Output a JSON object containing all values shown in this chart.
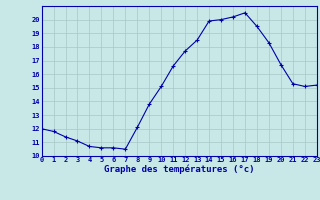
{
  "x": [
    0,
    1,
    2,
    3,
    4,
    5,
    6,
    7,
    8,
    9,
    10,
    11,
    12,
    13,
    14,
    15,
    16,
    17,
    18,
    19,
    20,
    21,
    22,
    23
  ],
  "y": [
    12.0,
    11.8,
    11.4,
    11.1,
    10.7,
    10.6,
    10.6,
    10.5,
    12.1,
    13.8,
    15.1,
    16.6,
    17.7,
    18.5,
    19.9,
    20.0,
    20.2,
    20.5,
    19.5,
    18.3,
    16.7,
    15.3,
    15.1,
    15.2
  ],
  "line_color": "#0000AA",
  "marker": "+",
  "marker_size": 3,
  "bg_color": "#C8E8E8",
  "grid_color": "#A8C8C8",
  "xlabel": "Graphe des températures (°c)",
  "tick_color": "#0000AA",
  "ylim": [
    10,
    21
  ],
  "yticks": [
    10,
    11,
    12,
    13,
    14,
    15,
    16,
    17,
    18,
    19,
    20
  ],
  "xlim": [
    0,
    23
  ],
  "xticks": [
    0,
    1,
    2,
    3,
    4,
    5,
    6,
    7,
    8,
    9,
    10,
    11,
    12,
    13,
    14,
    15,
    16,
    17,
    18,
    19,
    20,
    21,
    22,
    23
  ]
}
